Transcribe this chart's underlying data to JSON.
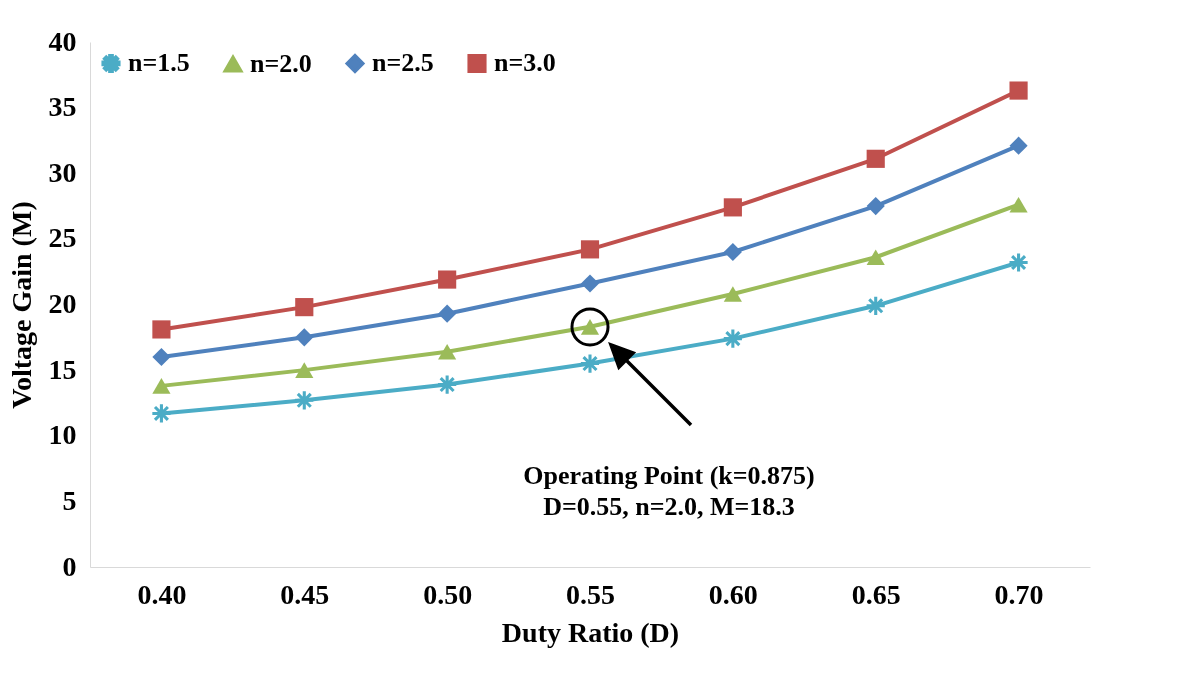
{
  "chart_data": {
    "type": "line",
    "xlabel": "Duty Ratio (D)",
    "ylabel": "Voltage Gain (M)",
    "x": [
      0.4,
      0.45,
      0.5,
      0.55,
      0.6,
      0.65,
      0.7
    ],
    "series": [
      {
        "name": "n=1.5",
        "color": "#4bacc6",
        "marker": "cross",
        "values": [
          11.7,
          12.7,
          13.9,
          15.5,
          17.4,
          19.9,
          23.2
        ]
      },
      {
        "name": "n=2.0",
        "color": "#9bbb59",
        "marker": "triangle",
        "values": [
          13.8,
          15.0,
          16.4,
          18.3,
          20.8,
          23.6,
          27.6
        ]
      },
      {
        "name": "n=2.5",
        "color": "#4f81bd",
        "marker": "diamond",
        "values": [
          16.0,
          17.5,
          19.3,
          21.6,
          24.0,
          27.5,
          32.1
        ]
      },
      {
        "name": "n=3.0",
        "color": "#c0504d",
        "marker": "square",
        "values": [
          18.1,
          19.8,
          21.9,
          24.2,
          27.4,
          31.1,
          36.3
        ]
      }
    ],
    "xlim": [
      0.375,
      0.725
    ],
    "xticks": [
      {
        "value": 0.4,
        "label": "0.40"
      },
      {
        "value": 0.45,
        "label": "0.45"
      },
      {
        "value": 0.5,
        "label": "0.50"
      },
      {
        "value": 0.55,
        "label": "0.55"
      },
      {
        "value": 0.6,
        "label": "0.60"
      },
      {
        "value": 0.65,
        "label": "0.65"
      },
      {
        "value": 0.7,
        "label": "0.70"
      }
    ],
    "ylim": [
      0,
      40
    ],
    "yticks": [
      0,
      5,
      10,
      15,
      20,
      25,
      30,
      35,
      40
    ],
    "grid": false,
    "legend": "top left",
    "annotations": [
      "Operating Point (k=0.875)\nD=0.55, n=2.0, M=18.3"
    ]
  }
}
